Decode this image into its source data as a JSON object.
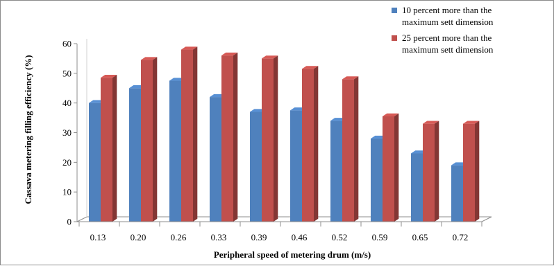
{
  "chart_data": {
    "type": "bar",
    "style": "3d-clustered-column",
    "xlabel": "Peripheral speed of metering drum (m/s)",
    "ylabel": "Cassava metering filling efficiency (%)",
    "ylim": [
      0,
      60
    ],
    "yticks": [
      0,
      10,
      20,
      30,
      40,
      50,
      60
    ],
    "grid": false,
    "legend_position": "top-right",
    "categories": [
      "0.13",
      "0.20",
      "0.26",
      "0.33",
      "0.39",
      "0.46",
      "0.52",
      "0.59",
      "0.65",
      "0.72"
    ],
    "series": [
      {
        "name": "10 percent more than the maximum sett dimension",
        "legend_lines": [
          "10 percent more than the",
          "maximum sett dimension"
        ],
        "color": "#4f81bd",
        "values": [
          40,
          45,
          47.5,
          42,
          37,
          37.5,
          34,
          28,
          23,
          19
        ]
      },
      {
        "name": "25 percent more than the maximum sett dimension",
        "legend_lines": [
          "25 percent more than the",
          "maximum sett dimension"
        ],
        "color": "#c0504d",
        "values": [
          48.5,
          54.5,
          58,
          56,
          55,
          51.5,
          48,
          35.5,
          33,
          33
        ]
      }
    ]
  }
}
